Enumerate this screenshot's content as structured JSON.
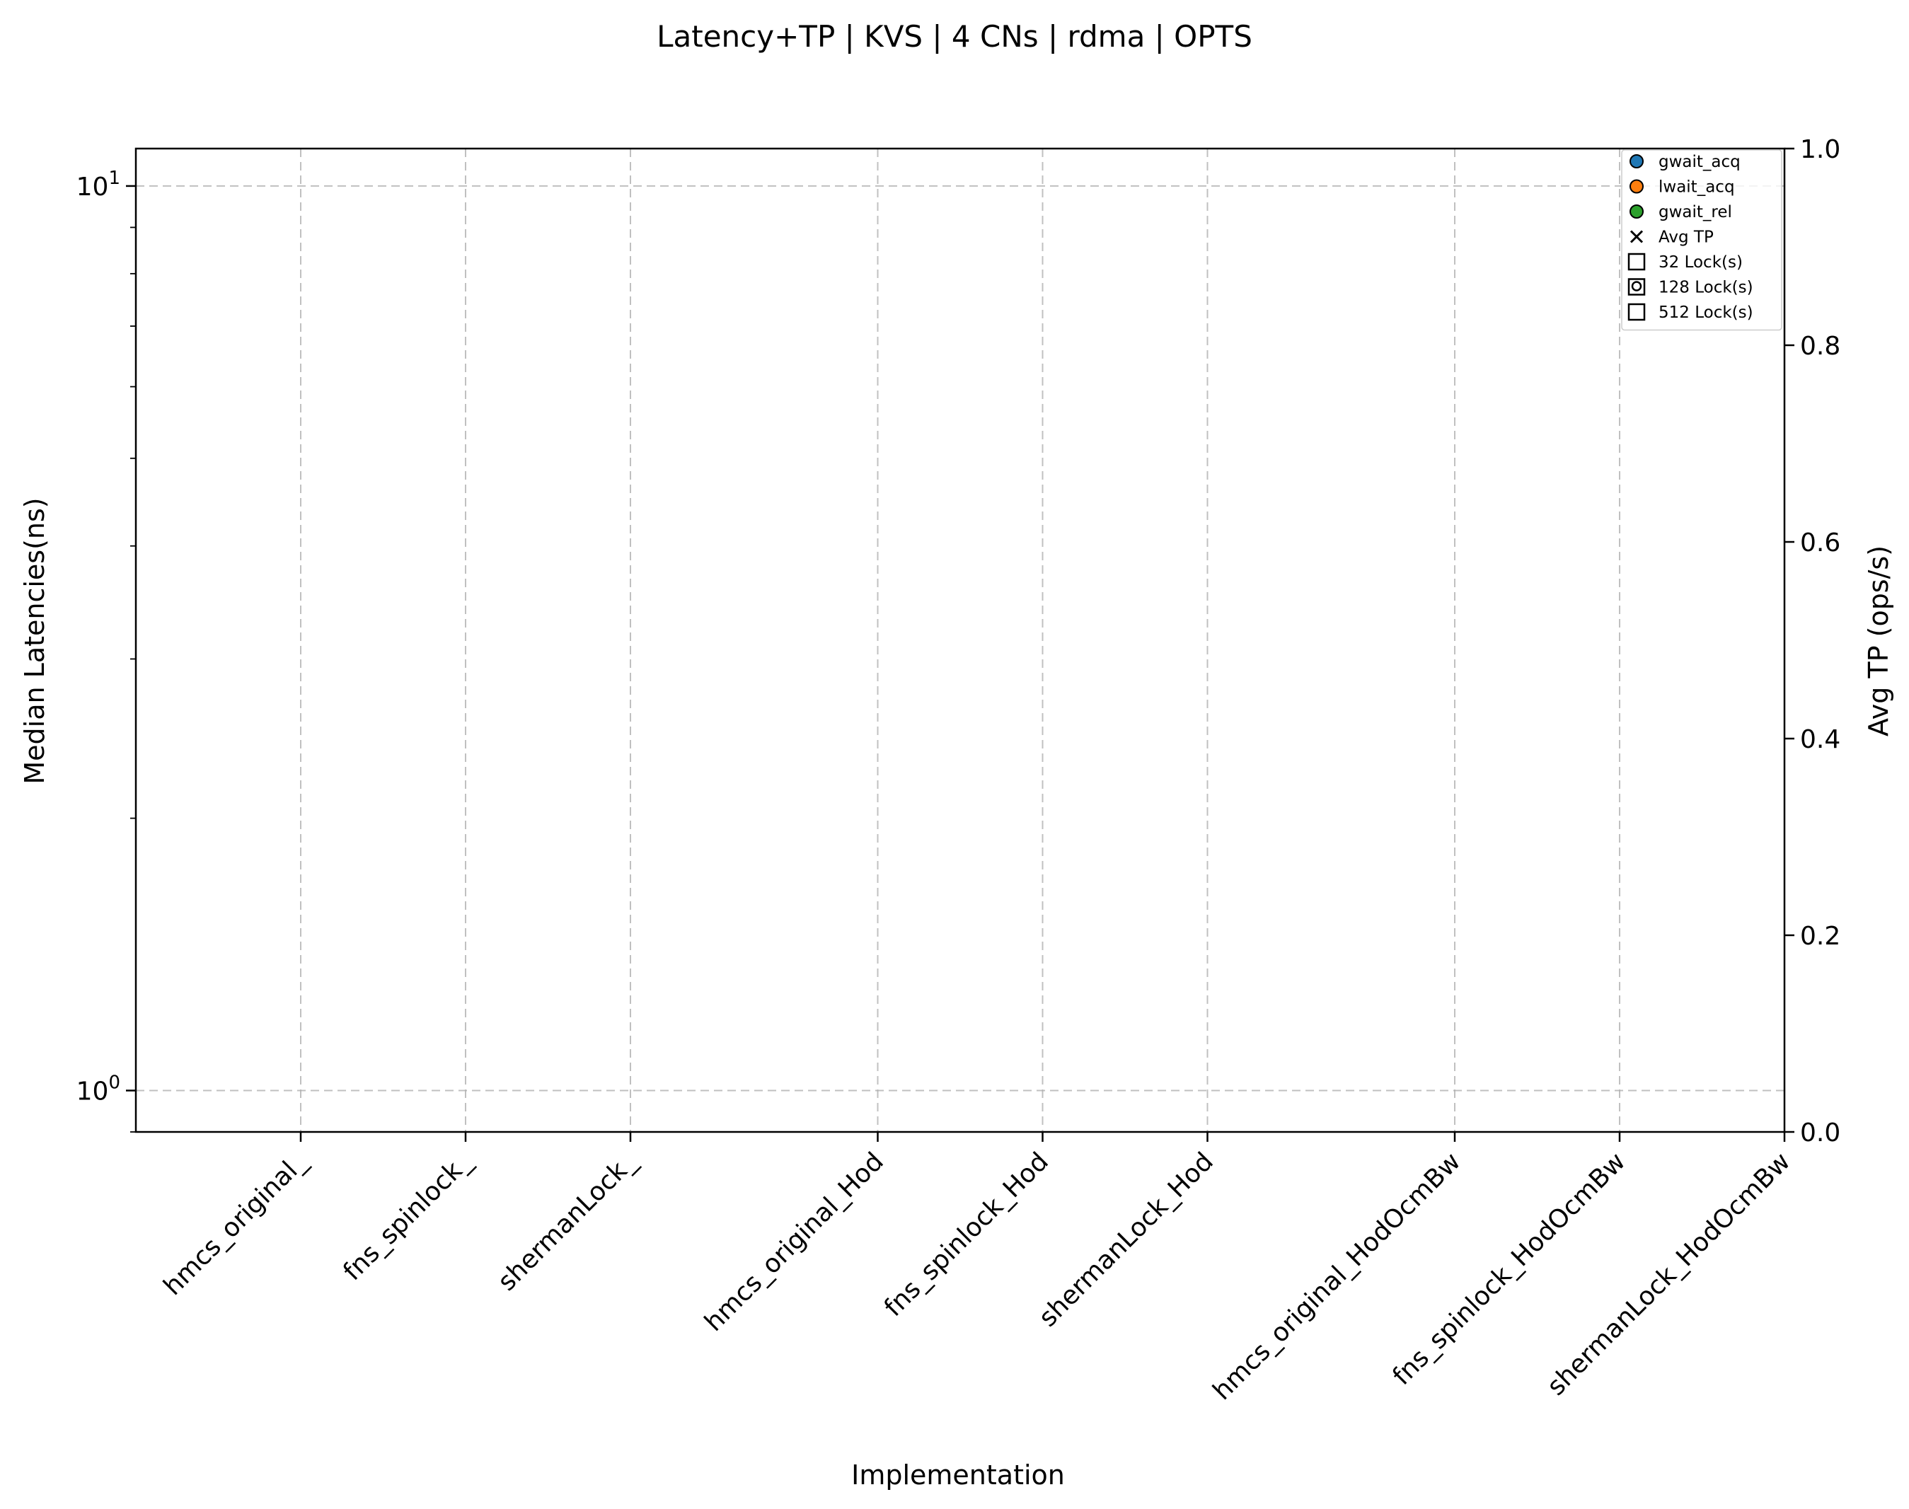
{
  "chart_data": {
    "type": "scatter",
    "title": "Latency+TP | KVS | 4 CNs | rdma | OPTS",
    "xlabel": "Implementation",
    "ylabel": "Median Latencies(ns)",
    "y2label": "Avg TP (ops/s)",
    "categories": [
      "hmcs_original_",
      "fns_spinlock_",
      "shermanLock_",
      "hmcs_original_Hod",
      "fns_spinlock_Hod",
      "shermanLock_Hod",
      "hmcs_original_HodOcmBw",
      "fns_spinlock_HodOcmBw",
      "shermanLock_HodOcmBw"
    ],
    "category_positions": [
      0,
      1,
      2,
      3.5,
      4.5,
      5.5,
      7,
      8,
      9
    ],
    "xlim": [
      -1,
      9
    ],
    "y_scale": "log",
    "ylim": [
      0.9,
      11.0
    ],
    "y_ticks": [
      {
        "value": 1,
        "label_base": "10",
        "label_exp": "0"
      },
      {
        "value": 10,
        "label_base": "10",
        "label_exp": "1"
      }
    ],
    "y2lim": [
      0.0,
      1.0
    ],
    "y2_ticks": [
      {
        "value": 0.0,
        "label": "0.0"
      },
      {
        "value": 0.2,
        "label": "0.2"
      },
      {
        "value": 0.4,
        "label": "0.4"
      },
      {
        "value": 0.6,
        "label": "0.6"
      },
      {
        "value": 0.8,
        "label": "0.8"
      },
      {
        "value": 1.0,
        "label": "1.0"
      }
    ],
    "grid": true,
    "legend_position": "top-right",
    "legend": [
      {
        "label": "gwait_acq",
        "marker": "circle",
        "color": "#1f77b4"
      },
      {
        "label": "lwait_acq",
        "marker": "circle",
        "color": "#ff7f0e"
      },
      {
        "label": "gwait_rel",
        "marker": "circle",
        "color": "#2ca02c"
      },
      {
        "label": "Avg TP",
        "marker": "x",
        "color": "#000000"
      },
      {
        "label": "32 Lock(s)",
        "marker": "square",
        "color": "#000000"
      },
      {
        "label": "128 Lock(s)",
        "marker": "square-circle",
        "color": "#000000"
      },
      {
        "label": "512 Lock(s)",
        "marker": "square",
        "color": "#000000"
      }
    ],
    "series": []
  }
}
